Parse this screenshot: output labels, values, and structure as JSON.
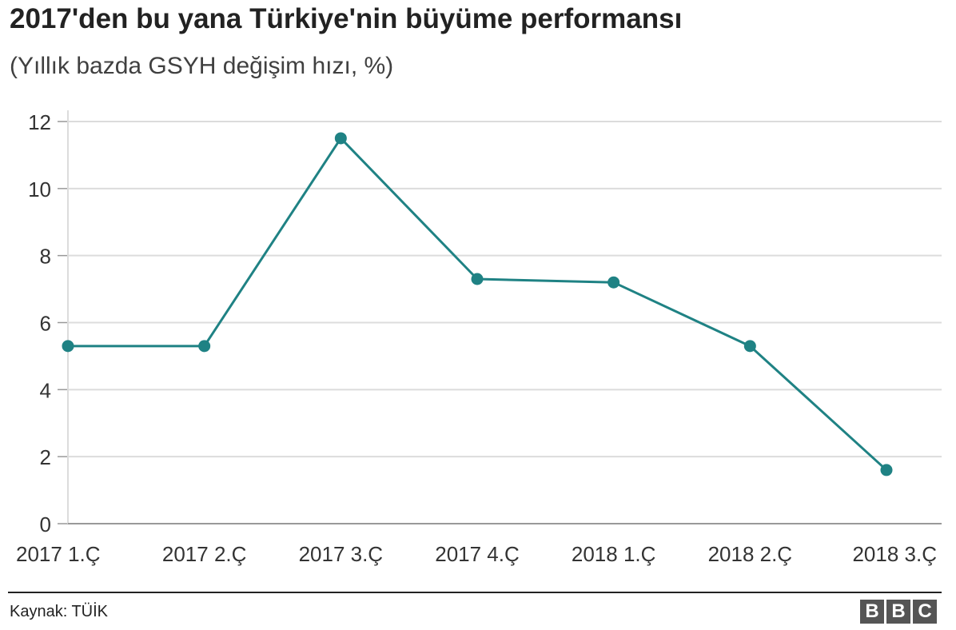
{
  "title": "2017'den bu yana Türkiye'nin büyüme performansı",
  "subtitle": "(Yıllık bazda GSYH değişim hızı, %)",
  "source": "Kaynak: TÜİK",
  "logo_letters": [
    "B",
    "B",
    "C"
  ],
  "colors": {
    "line": "#1f8284",
    "grid": "#dcdcdc",
    "axis": "#999999",
    "text": "#222222",
    "logo_bg": "#555555"
  },
  "chart_data": {
    "type": "line",
    "title": "2017'den bu yana Türkiye'nin büyüme performansı",
    "subtitle": "(Yıllık bazda GSYH değişim hızı, %)",
    "categories": [
      "2017 1.Ç",
      "2017 2.Ç",
      "2017 3.Ç",
      "2017 4.Ç",
      "2018 1.Ç",
      "2018 2.Ç",
      "2018 3.Ç"
    ],
    "values": [
      5.3,
      5.3,
      11.5,
      7.3,
      7.2,
      5.3,
      1.6
    ],
    "ylim": [
      0,
      12
    ],
    "yticks": [
      0,
      2,
      4,
      6,
      8,
      10,
      12
    ],
    "xlabel": "",
    "ylabel": "",
    "grid": true,
    "markers": true,
    "legend": "none"
  }
}
